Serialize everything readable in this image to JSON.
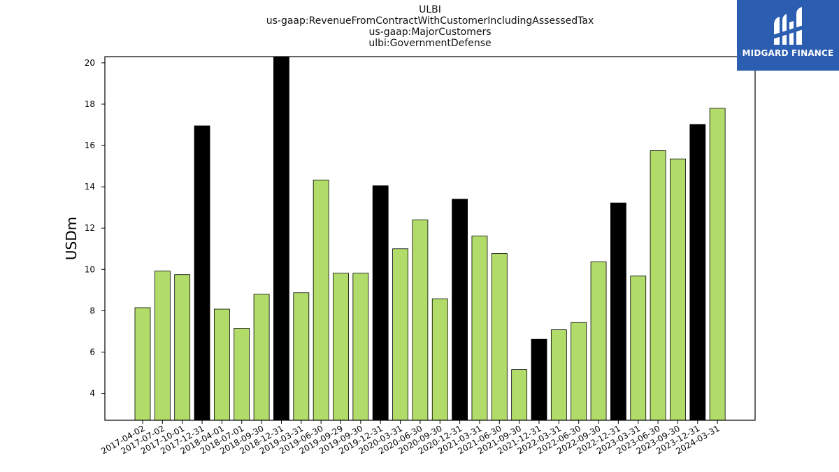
{
  "title_lines": [
    "ULBI",
    "us-gaap:RevenueFromContractWithCustomerIncludingAssessedTax",
    "us-gaap:MajorCustomers",
    "ulbi:GovernmentDefense"
  ],
  "logo": {
    "text": "MIDGARD FINANCE",
    "icon": "midgard-logo-icon",
    "background": "#2b5db0"
  },
  "colors": {
    "quarter_bar": "#b2dc6a",
    "year_end_bar": "#000000",
    "bar_edge": "#000000"
  },
  "chart_data": {
    "type": "bar",
    "title": "ULBI\nus-gaap:RevenueFromContractWithCustomerIncludingAssessedTax\nus-gaap:MajorCustomers\nulbi:GovernmentDefense",
    "xlabel": "",
    "ylabel": "USDm",
    "ylim": [
      2.7,
      20.3
    ],
    "yticks": [
      4,
      6,
      8,
      10,
      12,
      14,
      16,
      18,
      20
    ],
    "grid": false,
    "categories": [
      "2017-04-02",
      "2017-07-02",
      "2017-10-01",
      "2017-12-31",
      "2018-04-01",
      "2018-07-01",
      "2018-09-30",
      "2018-12-31",
      "2019-03-31",
      "2019-06-30",
      "2019-09-29",
      "2019-09-30",
      "2019-12-31",
      "2020-03-31",
      "2020-06-30",
      "2020-09-30",
      "2020-12-31",
      "2021-03-31",
      "2021-06-30",
      "2021-09-30",
      "2021-12-31",
      "2022-03-31",
      "2022-06-30",
      "2022-09-30",
      "2022-12-31",
      "2023-03-31",
      "2023-06-30",
      "2023-09-30",
      "2023-12-31",
      "2024-03-31"
    ],
    "values": [
      8.15,
      9.92,
      9.75,
      16.95,
      8.08,
      7.15,
      8.8,
      20.3,
      8.87,
      14.33,
      9.82,
      9.82,
      14.05,
      11.0,
      12.4,
      8.58,
      13.4,
      11.62,
      10.77,
      5.15,
      6.62,
      7.08,
      7.43,
      10.37,
      13.22,
      9.68,
      15.75,
      15.35,
      17.02,
      17.8
    ],
    "year_end": [
      false,
      false,
      false,
      true,
      false,
      false,
      false,
      true,
      false,
      false,
      false,
      false,
      true,
      false,
      false,
      false,
      true,
      false,
      false,
      false,
      true,
      false,
      false,
      false,
      true,
      false,
      false,
      false,
      true,
      false
    ]
  }
}
